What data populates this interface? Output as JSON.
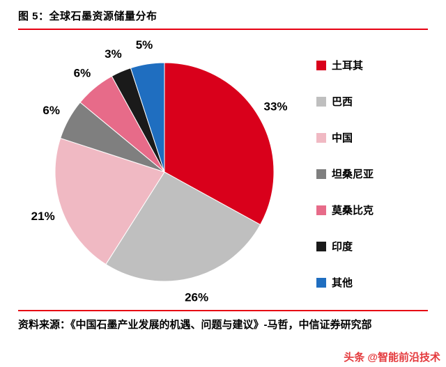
{
  "header": {
    "title": "图 5：全球石墨资源储量分布"
  },
  "chart_data": {
    "type": "pie",
    "title": "全球石墨资源储量分布",
    "start_angle_deg": 0,
    "direction": "clockwise",
    "legend_position": "right",
    "accent_rule_color": "#e60012",
    "series": [
      {
        "label": "土耳其",
        "value": 33,
        "display": "33%",
        "color": "#d9001b"
      },
      {
        "label": "巴西",
        "value": 26,
        "display": "26%",
        "color": "#bfbfbf"
      },
      {
        "label": "中国",
        "value": 21,
        "display": "21%",
        "color": "#f0b9c3"
      },
      {
        "label": "坦桑尼亚",
        "value": 6,
        "display": "6%",
        "color": "#7f7f7f"
      },
      {
        "label": "莫桑比克",
        "value": 6,
        "display": "6%",
        "color": "#e76b89"
      },
      {
        "label": "印度",
        "value": 3,
        "display": "3%",
        "color": "#1a1a1a"
      },
      {
        "label": "其他",
        "value": 5,
        "display": "5%",
        "color": "#1f6ec0"
      }
    ]
  },
  "footer": {
    "source": "资料来源：《中国石墨产业发展的机遇、问题与建议》-马哲，中信证券研究部"
  },
  "watermark": {
    "text": "头条 @智能前沿技术"
  }
}
